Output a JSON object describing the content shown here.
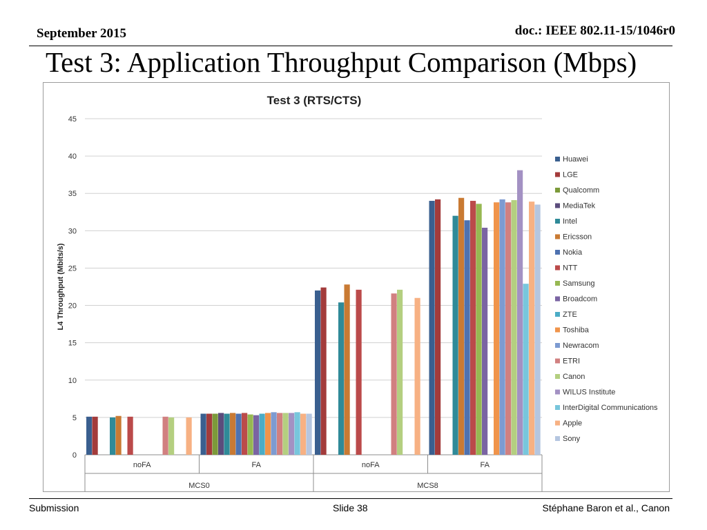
{
  "header": {
    "date": "September 2015",
    "doc": "doc.: IEEE 802.11-15/1046r0"
  },
  "slide_title": "Test 3: Application Throughput Comparison (Mbps)",
  "footer": {
    "left": "Submission",
    "center": "Slide 38",
    "right": "Stéphane Baron et al., Canon"
  },
  "chart_data": {
    "type": "bar",
    "title": "Test 3 (RTS/CTS)",
    "xlabel": "",
    "ylabel": "L4 Throughput (Mbits/s)",
    "ylim": [
      0,
      45
    ],
    "yticks": [
      0,
      5,
      10,
      15,
      20,
      25,
      30,
      35,
      40,
      45
    ],
    "grid": true,
    "legend_position": "right",
    "categories": [
      "noFA",
      "FA",
      "noFA",
      "FA"
    ],
    "groups": [
      {
        "label": "MCS0",
        "categories": [
          "noFA",
          "FA"
        ]
      },
      {
        "label": "MCS8",
        "categories": [
          "noFA",
          "FA"
        ]
      }
    ],
    "series": [
      {
        "name": "Huawei",
        "color": "#3a5f8f",
        "values": [
          5.1,
          5.5,
          22.0,
          34.0
        ]
      },
      {
        "name": "LGE",
        "color": "#a33b3b",
        "values": [
          5.1,
          5.5,
          22.4,
          34.2
        ]
      },
      {
        "name": "Qualcomm",
        "color": "#7c9a3a",
        "values": [
          null,
          5.5,
          null,
          null
        ]
      },
      {
        "name": "MediaTek",
        "color": "#5b4c7c",
        "values": [
          null,
          5.6,
          null,
          null
        ]
      },
      {
        "name": "Intel",
        "color": "#2f8a98",
        "values": [
          5.0,
          5.5,
          20.4,
          32.0
        ]
      },
      {
        "name": "Ericsson",
        "color": "#c97a33",
        "values": [
          5.2,
          5.6,
          22.8,
          34.4
        ]
      },
      {
        "name": "Nokia",
        "color": "#4e72b0",
        "values": [
          null,
          5.5,
          null,
          31.4
        ]
      },
      {
        "name": "NTT",
        "color": "#bb4a4a",
        "values": [
          5.1,
          5.6,
          22.1,
          34.0
        ]
      },
      {
        "name": "Samsung",
        "color": "#97b852",
        "values": [
          null,
          5.4,
          null,
          33.6
        ]
      },
      {
        "name": "Broadcom",
        "color": "#7a64a3",
        "values": [
          null,
          5.3,
          null,
          30.4
        ]
      },
      {
        "name": "ZTE",
        "color": "#4bacc6",
        "values": [
          null,
          5.5,
          null,
          null
        ]
      },
      {
        "name": "Toshiba",
        "color": "#f0944b",
        "values": [
          null,
          5.6,
          null,
          33.8
        ]
      },
      {
        "name": "Newracom",
        "color": "#7d9bd1",
        "values": [
          null,
          5.7,
          null,
          34.2
        ]
      },
      {
        "name": "ETRI",
        "color": "#d18080",
        "values": [
          5.1,
          5.6,
          21.6,
          33.8
        ]
      },
      {
        "name": "Canon",
        "color": "#b4cf80",
        "values": [
          5.0,
          5.6,
          22.1,
          34.1
        ]
      },
      {
        "name": "WILUS Institute",
        "color": "#a391c3",
        "values": [
          null,
          5.6,
          null,
          38.1
        ]
      },
      {
        "name": "InterDigital Communications",
        "color": "#78c6dc",
        "values": [
          null,
          5.7,
          null,
          22.9
        ]
      },
      {
        "name": "Apple",
        "color": "#f7b183",
        "values": [
          5.0,
          5.5,
          21.0,
          33.9
        ]
      },
      {
        "name": "Sony",
        "color": "#b5c6e0",
        "values": [
          null,
          5.5,
          null,
          33.5
        ]
      }
    ]
  }
}
